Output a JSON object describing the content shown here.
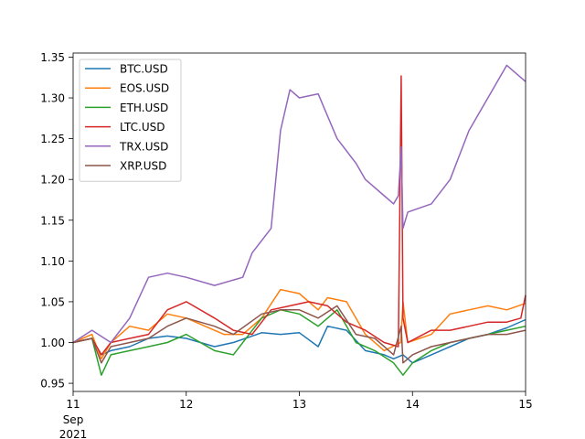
{
  "chart_data": {
    "type": "line",
    "title": "",
    "xlabel": "",
    "ylabel": "",
    "x_range": [
      "2021-09-11",
      "2021-09-15"
    ],
    "ylim": [
      0.94,
      1.355
    ],
    "grid": false,
    "legend_placement": "top-left",
    "x_ticks": [
      {
        "x": "2021-09-11",
        "label": "11",
        "sub": [
          "Sep",
          "2021"
        ]
      },
      {
        "x": "2021-09-12",
        "label": "12"
      },
      {
        "x": "2021-09-13",
        "label": "13"
      },
      {
        "x": "2021-09-14",
        "label": "14"
      },
      {
        "x": "2021-09-15",
        "label": "15"
      }
    ],
    "y_ticks": [
      0.95,
      1.0,
      1.05,
      1.1,
      1.15,
      1.2,
      1.25,
      1.3,
      1.35
    ],
    "y_tick_labels": [
      "0.95",
      "1.00",
      "1.05",
      "1.10",
      "1.15",
      "1.20",
      "1.25",
      "1.30",
      "1.35"
    ],
    "series": [
      {
        "name": "BTC.USD",
        "color": "#1f77b4",
        "x": [
          "2021-09-11T00:00",
          "2021-09-11T04:00",
          "2021-09-11T06:00",
          "2021-09-11T08:00",
          "2021-09-11T12:00",
          "2021-09-11T16:00",
          "2021-09-11T20:00",
          "2021-09-12T00:00",
          "2021-09-12T06:00",
          "2021-09-12T10:00",
          "2021-09-12T14:00",
          "2021-09-12T16:00",
          "2021-09-12T20:00",
          "2021-09-13T00:00",
          "2021-09-13T04:00",
          "2021-09-13T06:00",
          "2021-09-13T10:00",
          "2021-09-13T14:00",
          "2021-09-13T18:00",
          "2021-09-13T20:00",
          "2021-09-13T22:00",
          "2021-09-14T00:00",
          "2021-09-14T04:00",
          "2021-09-14T08:00",
          "2021-09-14T12:00",
          "2021-09-14T16:00",
          "2021-09-14T20:00",
          "2021-09-15T00:00"
        ],
        "y": [
          1.0,
          1.005,
          0.985,
          0.99,
          0.995,
          1.005,
          1.008,
          1.005,
          0.995,
          1.0,
          1.008,
          1.012,
          1.01,
          1.012,
          0.995,
          1.02,
          1.015,
          0.99,
          0.985,
          0.98,
          0.985,
          0.975,
          0.985,
          0.995,
          1.005,
          1.01,
          1.018,
          1.028
        ]
      },
      {
        "name": "EOS.USD",
        "color": "#ff7f0e",
        "x": [
          "2021-09-11T00:00",
          "2021-09-11T04:00",
          "2021-09-11T06:00",
          "2021-09-11T08:00",
          "2021-09-11T12:00",
          "2021-09-11T16:00",
          "2021-09-11T20:00",
          "2021-09-12T00:00",
          "2021-09-12T04:00",
          "2021-09-12T08:00",
          "2021-09-12T12:00",
          "2021-09-12T16:00",
          "2021-09-12T20:00",
          "2021-09-13T00:00",
          "2021-09-13T04:00",
          "2021-09-13T06:00",
          "2021-09-13T10:00",
          "2021-09-13T14:00",
          "2021-09-13T18:00",
          "2021-09-13T21:30",
          "2021-09-13T22:00",
          "2021-09-13T23:00",
          "2021-09-14T04:00",
          "2021-09-14T08:00",
          "2021-09-14T12:00",
          "2021-09-14T16:00",
          "2021-09-14T20:00",
          "2021-09-15T00:00"
        ],
        "y": [
          1.0,
          1.01,
          0.98,
          1.0,
          1.02,
          1.015,
          1.035,
          1.03,
          1.02,
          1.01,
          1.01,
          1.03,
          1.065,
          1.06,
          1.04,
          1.055,
          1.05,
          1.01,
          0.99,
          1.0,
          1.05,
          1.0,
          1.01,
          1.035,
          1.04,
          1.045,
          1.04,
          1.048
        ]
      },
      {
        "name": "ETH.USD",
        "color": "#2ca02c",
        "x": [
          "2021-09-11T00:00",
          "2021-09-11T04:00",
          "2021-09-11T06:00",
          "2021-09-11T08:00",
          "2021-09-11T12:00",
          "2021-09-11T16:00",
          "2021-09-11T20:00",
          "2021-09-12T00:00",
          "2021-09-12T06:00",
          "2021-09-12T10:00",
          "2021-09-12T16:00",
          "2021-09-12T20:00",
          "2021-09-13T00:00",
          "2021-09-13T04:00",
          "2021-09-13T08:00",
          "2021-09-13T12:00",
          "2021-09-13T16:00",
          "2021-09-13T20:00",
          "2021-09-13T22:00",
          "2021-09-14T00:00",
          "2021-09-14T04:00",
          "2021-09-14T08:00",
          "2021-09-14T12:00",
          "2021-09-14T16:00",
          "2021-09-14T20:00",
          "2021-09-15T00:00"
        ],
        "y": [
          1.0,
          1.005,
          0.96,
          0.985,
          0.99,
          0.995,
          1.0,
          1.01,
          0.99,
          0.985,
          1.03,
          1.04,
          1.035,
          1.02,
          1.04,
          1.0,
          0.99,
          0.975,
          0.96,
          0.975,
          0.99,
          1.0,
          1.005,
          1.01,
          1.015,
          1.02
        ]
      },
      {
        "name": "LTC.USD",
        "color": "#d62728",
        "x": [
          "2021-09-11T00:00",
          "2021-09-11T04:00",
          "2021-09-11T06:00",
          "2021-09-11T08:00",
          "2021-09-11T12:00",
          "2021-09-11T16:00",
          "2021-09-11T20:00",
          "2021-09-12T00:00",
          "2021-09-12T06:00",
          "2021-09-12T10:00",
          "2021-09-12T14:00",
          "2021-09-12T18:00",
          "2021-09-12T22:00",
          "2021-09-13T02:00",
          "2021-09-13T06:00",
          "2021-09-13T10:00",
          "2021-09-13T14:00",
          "2021-09-13T18:00",
          "2021-09-13T21:00",
          "2021-09-13T21:36",
          "2021-09-13T22:00",
          "2021-09-13T23:00",
          "2021-09-14T04:00",
          "2021-09-14T08:00",
          "2021-09-14T12:00",
          "2021-09-14T16:00",
          "2021-09-14T20:00",
          "2021-09-14T23:00",
          "2021-09-15T00:00"
        ],
        "y": [
          1.0,
          1.005,
          0.985,
          1.0,
          1.005,
          1.01,
          1.04,
          1.05,
          1.03,
          1.015,
          1.01,
          1.04,
          1.045,
          1.05,
          1.045,
          1.025,
          1.015,
          1.0,
          0.995,
          1.327,
          1.03,
          1.0,
          1.015,
          1.015,
          1.02,
          1.025,
          1.025,
          1.03,
          1.058
        ]
      },
      {
        "name": "TRX.USD",
        "color": "#9467bd",
        "x": [
          "2021-09-11T00:00",
          "2021-09-11T04:00",
          "2021-09-11T08:00",
          "2021-09-11T12:00",
          "2021-09-11T16:00",
          "2021-09-11T20:00",
          "2021-09-12T00:00",
          "2021-09-12T06:00",
          "2021-09-12T12:00",
          "2021-09-12T14:00",
          "2021-09-12T18:00",
          "2021-09-12T20:00",
          "2021-09-12T22:00",
          "2021-09-13T00:00",
          "2021-09-13T04:00",
          "2021-09-13T08:00",
          "2021-09-13T12:00",
          "2021-09-13T14:00",
          "2021-09-13T18:00",
          "2021-09-13T20:00",
          "2021-09-13T21:00",
          "2021-09-13T21:36",
          "2021-09-13T22:00",
          "2021-09-13T23:00",
          "2021-09-14T04:00",
          "2021-09-14T08:00",
          "2021-09-14T12:00",
          "2021-09-14T16:00",
          "2021-09-14T20:00",
          "2021-09-15T00:00"
        ],
        "y": [
          1.0,
          1.015,
          1.0,
          1.03,
          1.08,
          1.085,
          1.08,
          1.07,
          1.08,
          1.11,
          1.14,
          1.26,
          1.31,
          1.3,
          1.305,
          1.25,
          1.22,
          1.2,
          1.18,
          1.17,
          1.18,
          1.24,
          1.14,
          1.16,
          1.17,
          1.2,
          1.26,
          1.3,
          1.34,
          1.32
        ]
      },
      {
        "name": "XRP.USD",
        "color": "#8c564b",
        "x": [
          "2021-09-11T00:00",
          "2021-09-11T04:00",
          "2021-09-11T06:00",
          "2021-09-11T08:00",
          "2021-09-11T12:00",
          "2021-09-11T16:00",
          "2021-09-11T20:00",
          "2021-09-12T00:00",
          "2021-09-12T06:00",
          "2021-09-12T10:00",
          "2021-09-12T16:00",
          "2021-09-12T20:00",
          "2021-09-13T00:00",
          "2021-09-13T04:00",
          "2021-09-13T08:00",
          "2021-09-13T12:00",
          "2021-09-13T16:00",
          "2021-09-13T20:00",
          "2021-09-13T21:36",
          "2021-09-13T22:00",
          "2021-09-14T00:00",
          "2021-09-14T04:00",
          "2021-09-14T08:00",
          "2021-09-14T12:00",
          "2021-09-14T16:00",
          "2021-09-14T20:00",
          "2021-09-15T00:00"
        ],
        "y": [
          1.0,
          1.005,
          0.975,
          0.995,
          1.0,
          1.005,
          1.02,
          1.03,
          1.02,
          1.01,
          1.035,
          1.04,
          1.04,
          1.03,
          1.045,
          1.01,
          1.005,
          0.985,
          1.02,
          0.975,
          0.985,
          0.995,
          1.0,
          1.005,
          1.01,
          1.01,
          1.015
        ]
      }
    ]
  }
}
